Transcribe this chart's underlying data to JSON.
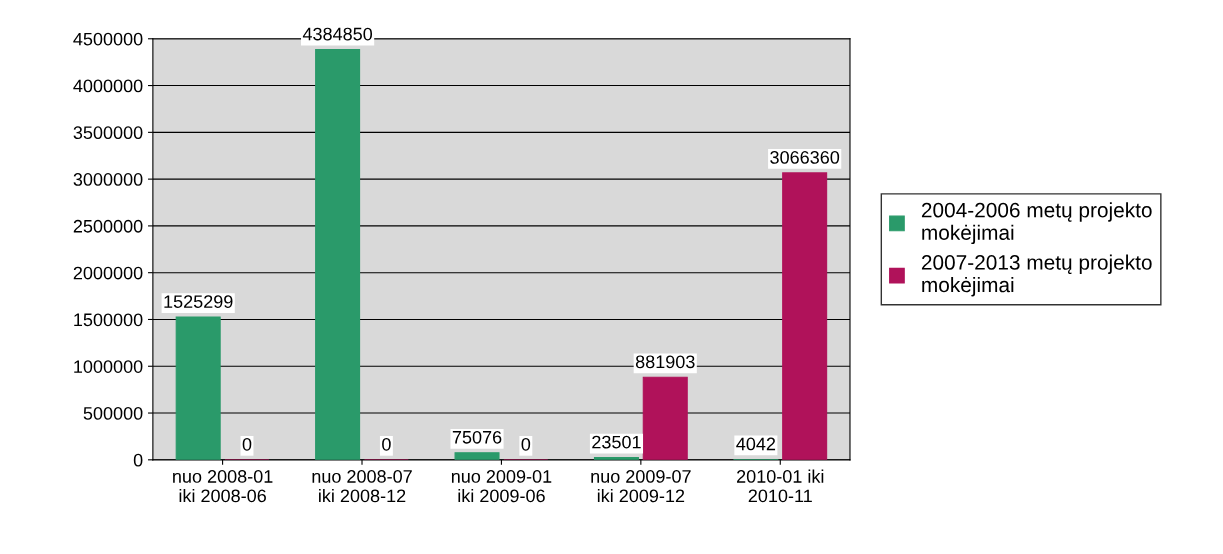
{
  "chart_data": {
    "type": "bar",
    "categories": [
      "nuo 2008-01\niki 2008-06",
      "nuo 2008-07\niki 2008-12",
      "nuo 2009-01\niki 2009-06",
      "nuo 2009-07\niki 2009-12",
      "2010-01 iki\n2010-11"
    ],
    "series": [
      {
        "name": "2004-2006 metų projekto\nmokėjimai",
        "color": "#2a9a6a",
        "values": [
          1525299,
          4384850,
          75076,
          23501,
          4042
        ]
      },
      {
        "name": "2007-2013 metų projekto\nmokėjimai",
        "color": "#b0125a",
        "values": [
          0,
          0,
          0,
          881903,
          3066360
        ]
      }
    ],
    "ylim": [
      0,
      4500000
    ],
    "yticks": [
      0,
      500000,
      1000000,
      1500000,
      2000000,
      2500000,
      3000000,
      3500000,
      4000000,
      4500000
    ],
    "grid": "y",
    "legend": "right",
    "data_labels": true
  }
}
